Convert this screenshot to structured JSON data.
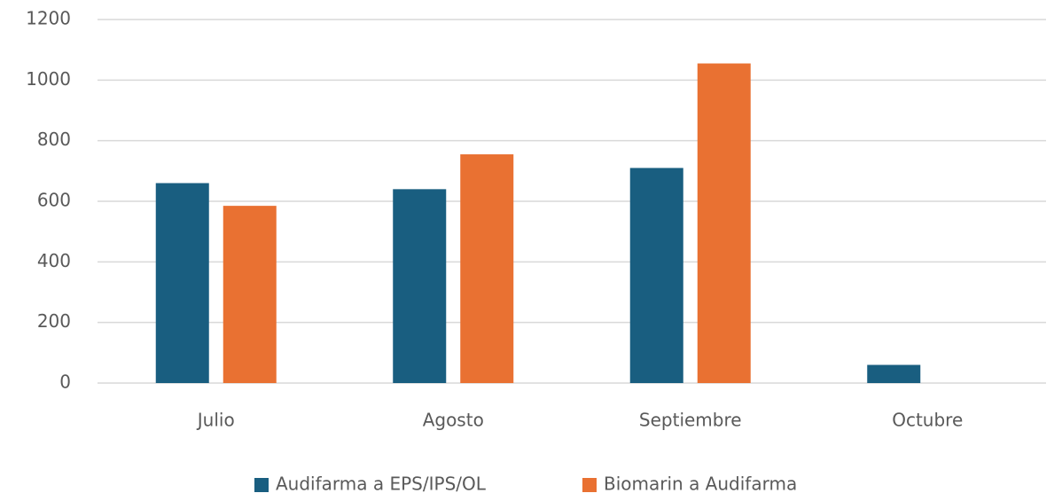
{
  "chart_data": {
    "type": "bar",
    "categories": [
      "Julio",
      "Agosto",
      "Septiembre",
      "Octubre"
    ],
    "series": [
      {
        "name": "Audifarma a EPS/IPS/OL",
        "color": "#195e80",
        "values": [
          660,
          640,
          710,
          60
        ]
      },
      {
        "name": "Biomarin a Audifarma",
        "color": "#e97132",
        "values": [
          585,
          755,
          1055,
          0
        ]
      }
    ],
    "ylim": [
      0,
      1200
    ],
    "yticks": [
      0,
      200,
      400,
      600,
      800,
      1000,
      1200
    ],
    "grid": true,
    "legend": "bottom"
  }
}
